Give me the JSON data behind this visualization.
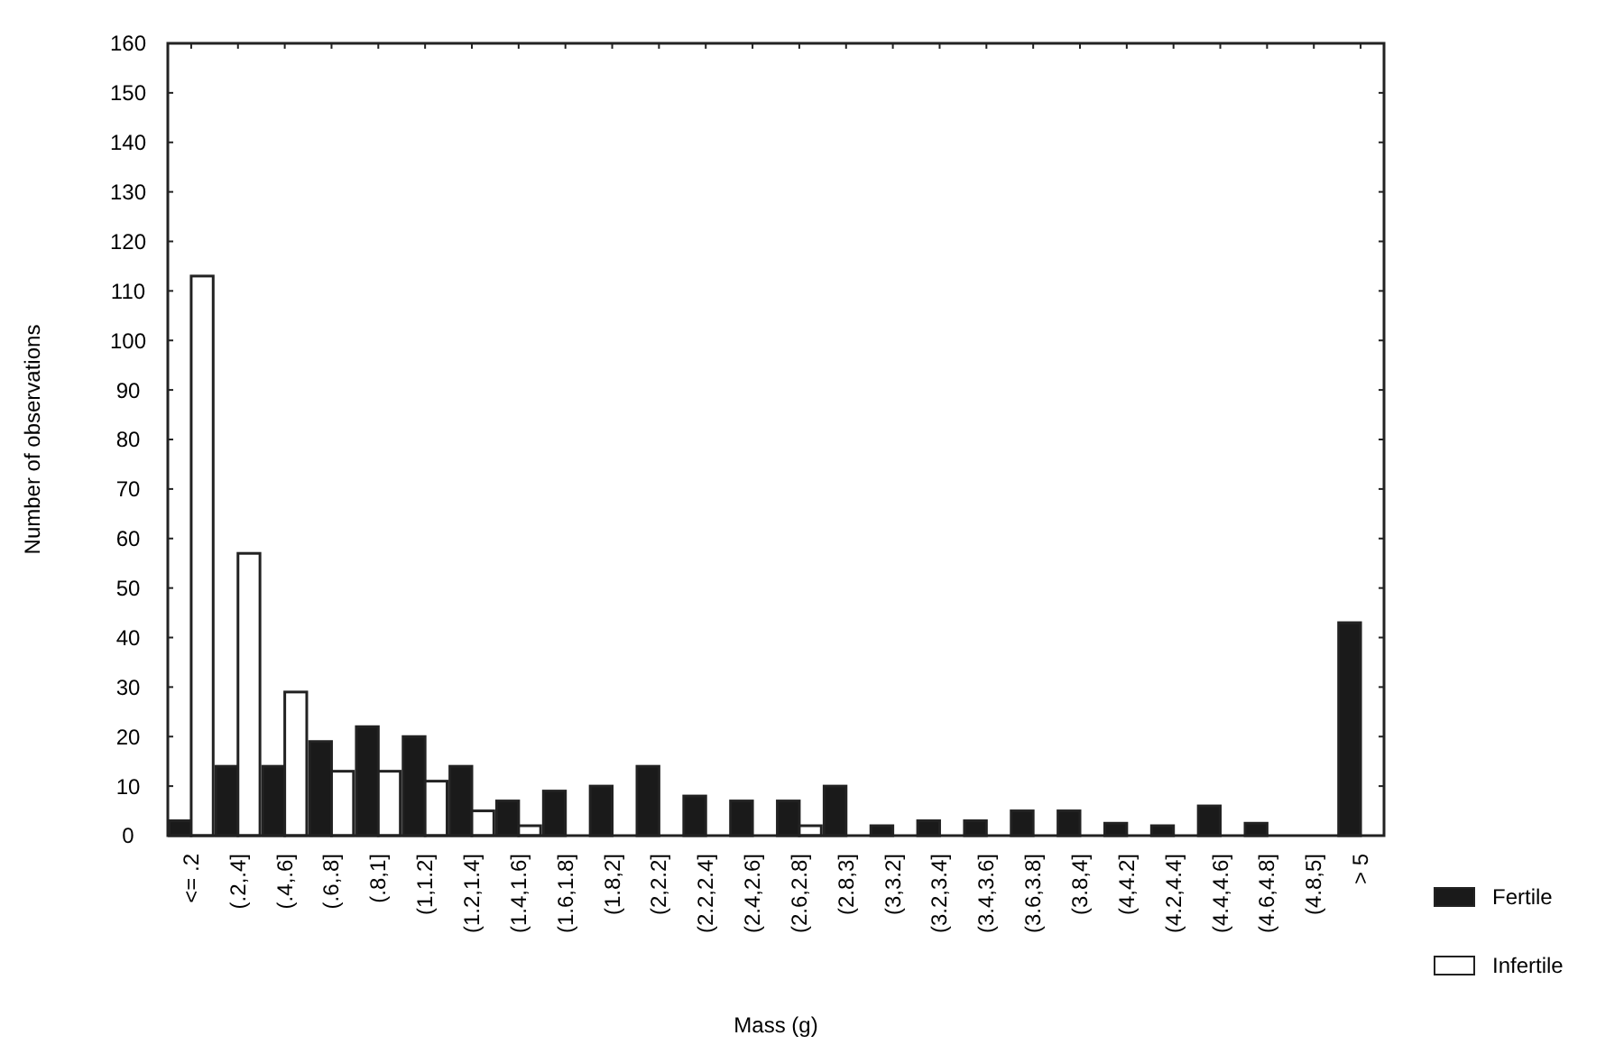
{
  "chart_data": {
    "type": "bar",
    "xlabel": "Mass (g)",
    "ylabel": "Number of observations",
    "categories": [
      "<= .2",
      "(.2,.4]",
      "(.4,.6]",
      "(.6,.8]",
      "(.8,1]",
      "(1,1.2]",
      "(1.2,1.4]",
      "(1.4,1.6]",
      "(1.6,1.8]",
      "(1.8,2]",
      "(2,2.2]",
      "(2.2,2.4]",
      "(2.4,2.6]",
      "(2.6,2.8]",
      "(2.8,3]",
      "(3,3.2]",
      "(3.2,3.4]",
      "(3.4,3.6]",
      "(3.6,3.8]",
      "(3.8,4]",
      "(4,4.2]",
      "(4.2,4.4]",
      "(4.4,4.6]",
      "(4.6,4.8]",
      "(4.8,5]",
      "> 5"
    ],
    "series": [
      {
        "name": "Fertile",
        "color": "#1a1a1a",
        "values": [
          3,
          14,
          14,
          19,
          22,
          20,
          14,
          7,
          9,
          10,
          14,
          8,
          7,
          7,
          10,
          2,
          3,
          3,
          5,
          5,
          2.5,
          2,
          6,
          2.5,
          0,
          43
        ]
      },
      {
        "name": "Infertile",
        "color": "#ffffff",
        "values": [
          113,
          57,
          29,
          13,
          13,
          11,
          5,
          2,
          0,
          0,
          0,
          0,
          0,
          2,
          0,
          0,
          0,
          0,
          0,
          0,
          0,
          0,
          0,
          0,
          0,
          0
        ]
      }
    ],
    "ylim": [
      0,
      160
    ],
    "yticks": [
      0,
      10,
      20,
      30,
      40,
      50,
      60,
      70,
      80,
      90,
      100,
      110,
      120,
      130,
      140,
      150,
      160
    ],
    "grid": false,
    "legend": "right"
  }
}
